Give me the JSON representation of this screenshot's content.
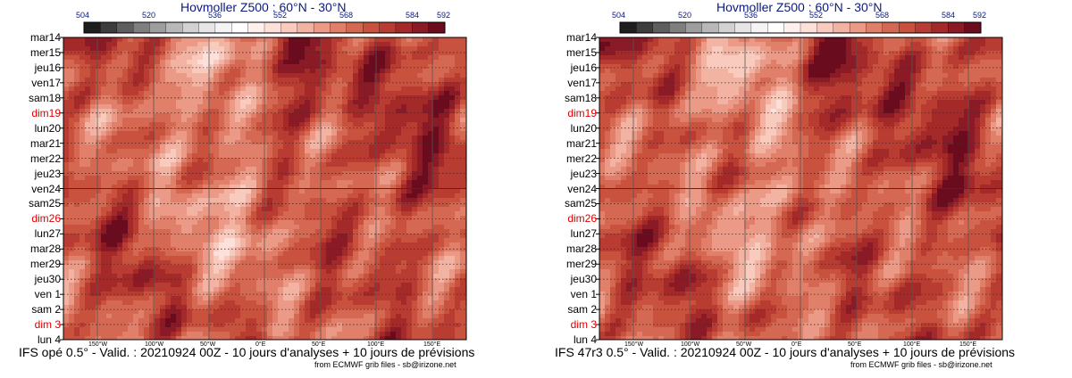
{
  "colors": {
    "scale": [
      "#1e1e1e",
      "#3d3d3d",
      "#5e5e5e",
      "#7f7f7f",
      "#9e9e9e",
      "#b8b8b8",
      "#d2d2d2",
      "#e6e6e6",
      "#f4f4f4",
      "#ffffff",
      "#fff0ee",
      "#fde0da",
      "#f9cbbf",
      "#f2b3a3",
      "#ea9a86",
      "#e0806b",
      "#d56852",
      "#c9523f",
      "#b93c32",
      "#a42a2a",
      "#8a1a26",
      "#6b0b1e"
    ]
  },
  "chart_data": [
    {
      "type": "heatmap",
      "title": "Hovmoller Z500 : 60°N - 30°N",
      "footer": "IFS opé 0.5° - Valid. : 20210924 00Z - 10 jours d'analyses + 10 jours de prévisions",
      "credit": "from ECMWF grib files - sb@irizone.net",
      "colorbar_ticks": [
        "504",
        "520",
        "536",
        "552",
        "568",
        "584",
        "592"
      ],
      "y_labels": [
        "mar14",
        "mer15",
        "jeu16",
        "ven17",
        "sam18",
        "dim19",
        "lun20",
        "mar21",
        "mer22",
        "jeu23",
        "ven24",
        "sam25",
        "dim26",
        "lun27",
        "mar28",
        "mer29",
        "jeu30",
        "ven 1",
        "sam 2",
        "dim 3",
        "lun 4"
      ],
      "y_red": [
        "dim19",
        "dim26",
        "dim 3"
      ],
      "x_labels": [
        "150°W",
        "100°W",
        "50°W",
        "0°E",
        "50°E",
        "100°E",
        "150°E"
      ],
      "grid": "dotted horizontal lines daily, solid line at ven24, vertical lines at longitude ticks",
      "legend": "colorbar top"
    },
    {
      "type": "heatmap",
      "title": "Hovmoller Z500 : 60°N - 30°N",
      "footer": "IFS 47r3 0.5° - Valid. : 20210924 00Z - 10 jours d'analyses + 10 jours de prévisions",
      "credit": "from ECMWF grib files - sb@irizone.net",
      "colorbar_ticks": [
        "504",
        "520",
        "536",
        "552",
        "568",
        "584",
        "592"
      ],
      "y_labels": [
        "mar14",
        "mer15",
        "jeu16",
        "ven17",
        "sam18",
        "dim19",
        "lun20",
        "mar21",
        "mer22",
        "jeu23",
        "ven24",
        "sam25",
        "dim26",
        "lun27",
        "mar28",
        "mer29",
        "jeu30",
        "ven 1",
        "sam 2",
        "dim 3",
        "lun 4"
      ],
      "y_red": [
        "dim19",
        "dim26",
        "dim 3"
      ],
      "x_labels": [
        "150°W",
        "100°W",
        "50°W",
        "0°E",
        "50°E",
        "100°E",
        "150°E"
      ],
      "grid": "dotted horizontal lines daily, solid line at ven24, vertical lines at longitude ticks",
      "legend": "colorbar top"
    }
  ]
}
